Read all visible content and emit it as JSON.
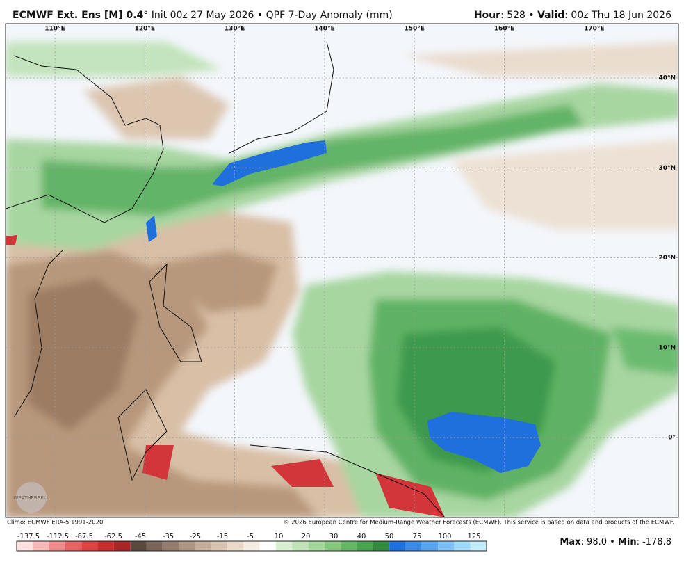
{
  "header": {
    "title_bold": "ECMWF Ext. Ens [M] 0.4",
    "title_rest": "° Init 00z 27 May 2026 • QPF 7-Day Anomaly (mm)",
    "hour_label": "Hour",
    "hour_value": ": 528 • ",
    "valid_label": "Valid",
    "valid_value": ": 00z Thu 18 Jun 2026"
  },
  "map": {
    "lon_labels": [
      "110°E",
      "120°E",
      "130°E",
      "140°E",
      "150°E",
      "160°E",
      "170°E"
    ],
    "lat_labels": [
      "40°N",
      "30°N",
      "20°N",
      "10°N",
      "0°"
    ]
  },
  "footer": {
    "climo": "Climo: ECMWF ERA-5 1991-2020",
    "copyright": "© 2026 European Centre for Medium-Range Weather Forecasts (ECMWF). This service is based on data and products of the ECMWF.",
    "colorbar_labels": [
      "-137.5",
      "-112.5",
      "-87.5",
      "-62.5",
      "-45",
      "-35",
      "-25",
      "-15",
      "-5",
      "10",
      "20",
      "30",
      "40",
      "50",
      "75",
      "100",
      "125"
    ],
    "max_label": "Max",
    "max_value": ": 98.0 • ",
    "min_label": "Min",
    "min_value": ": -178.8"
  }
}
